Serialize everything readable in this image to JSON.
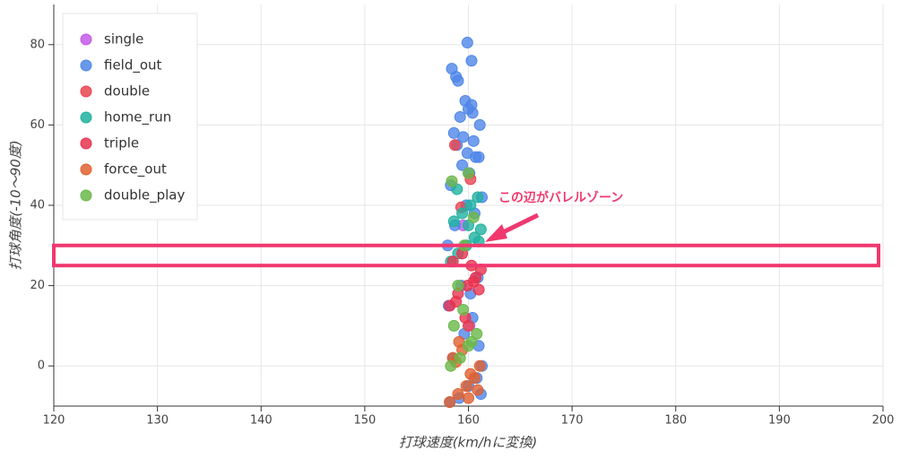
{
  "chart_data": {
    "type": "scatter",
    "x_label": "打球速度(km/hに変換)",
    "y_label": "打球角度(-10〜90度)",
    "xlim": [
      120,
      200
    ],
    "ylim": [
      -10,
      90
    ],
    "xticks": [
      120,
      130,
      140,
      150,
      160,
      170,
      180,
      190,
      200
    ],
    "yticks": [
      0,
      20,
      40,
      60,
      80
    ],
    "grid": true,
    "legend": "top-left",
    "annotation": {
      "text": "この辺がバレルゾーン",
      "ylim": [
        25,
        30
      ]
    },
    "series": [
      {
        "name": "single",
        "color": "#c45ae8",
        "x": [
          159.5,
          160.1
        ],
        "y": [
          35,
          10
        ]
      },
      {
        "name": "field_out",
        "color": "#4f86e8",
        "x": [
          158.2,
          159.1,
          160.0,
          160.8,
          161.2,
          158.5,
          159.6,
          160.4,
          161.0,
          158.1,
          159.3,
          160.2,
          160.9,
          158.7,
          159.8,
          160.6,
          161.3,
          158.3,
          159.4,
          160.1,
          160.7,
          158.9,
          159.9,
          160.5,
          161.1,
          158.6,
          159.2,
          160.3,
          159.7,
          160.0,
          158.8,
          160.4,
          159.0,
          161.0,
          158.4,
          159.5,
          159.9,
          160.3,
          158.0,
          161.3
        ],
        "y": [
          -9,
          -8,
          -5,
          -3,
          -7,
          2,
          8,
          12,
          5,
          15,
          20,
          18,
          22,
          35,
          40,
          38,
          42,
          45,
          50,
          48,
          52,
          55,
          53,
          56,
          60,
          58,
          62,
          65,
          66,
          64,
          72,
          63,
          71,
          52,
          74,
          57,
          80.5,
          76,
          30,
          0
        ]
      },
      {
        "name": "double",
        "color": "#e8454f",
        "x": [
          159.3,
          160.2,
          158.7,
          160.0
        ],
        "y": [
          39.5,
          46.5,
          55,
          10
        ]
      },
      {
        "name": "home_run",
        "color": "#20b2a0",
        "x": [
          158.3,
          159.0,
          159.8,
          160.6,
          161.2,
          158.6,
          159.4,
          160.2,
          160.9,
          158.9,
          160.0,
          161.0
        ],
        "y": [
          26,
          28,
          30,
          32,
          34,
          36,
          38,
          40,
          42,
          44,
          35,
          31
        ]
      },
      {
        "name": "triple",
        "color": "#e8334f",
        "x": [
          158.2,
          159.0,
          159.9,
          160.7,
          161.2,
          158.5,
          159.4,
          160.3,
          161.0,
          158.8,
          159.7,
          160.5
        ],
        "y": [
          15,
          18,
          20,
          22,
          24,
          26,
          28,
          25,
          19,
          16,
          12,
          21
        ]
      },
      {
        "name": "force_out",
        "color": "#e06030",
        "x": [
          158.2,
          159.0,
          159.8,
          160.6,
          161.1,
          158.5,
          159.4,
          160.2,
          160.9,
          159.1,
          160.0,
          158.8
        ],
        "y": [
          -9,
          -7,
          -5,
          -3,
          0,
          2,
          4,
          -2,
          -6,
          6,
          -8,
          1
        ]
      },
      {
        "name": "double_play",
        "color": "#6ab84a",
        "x": [
          158.3,
          159.2,
          160.0,
          160.8,
          158.6,
          159.5,
          160.3,
          159.0,
          160.5,
          158.4,
          160.0,
          159.6
        ],
        "y": [
          0,
          2,
          5,
          8,
          10,
          14,
          6,
          20,
          37,
          46,
          48,
          30
        ]
      }
    ]
  }
}
